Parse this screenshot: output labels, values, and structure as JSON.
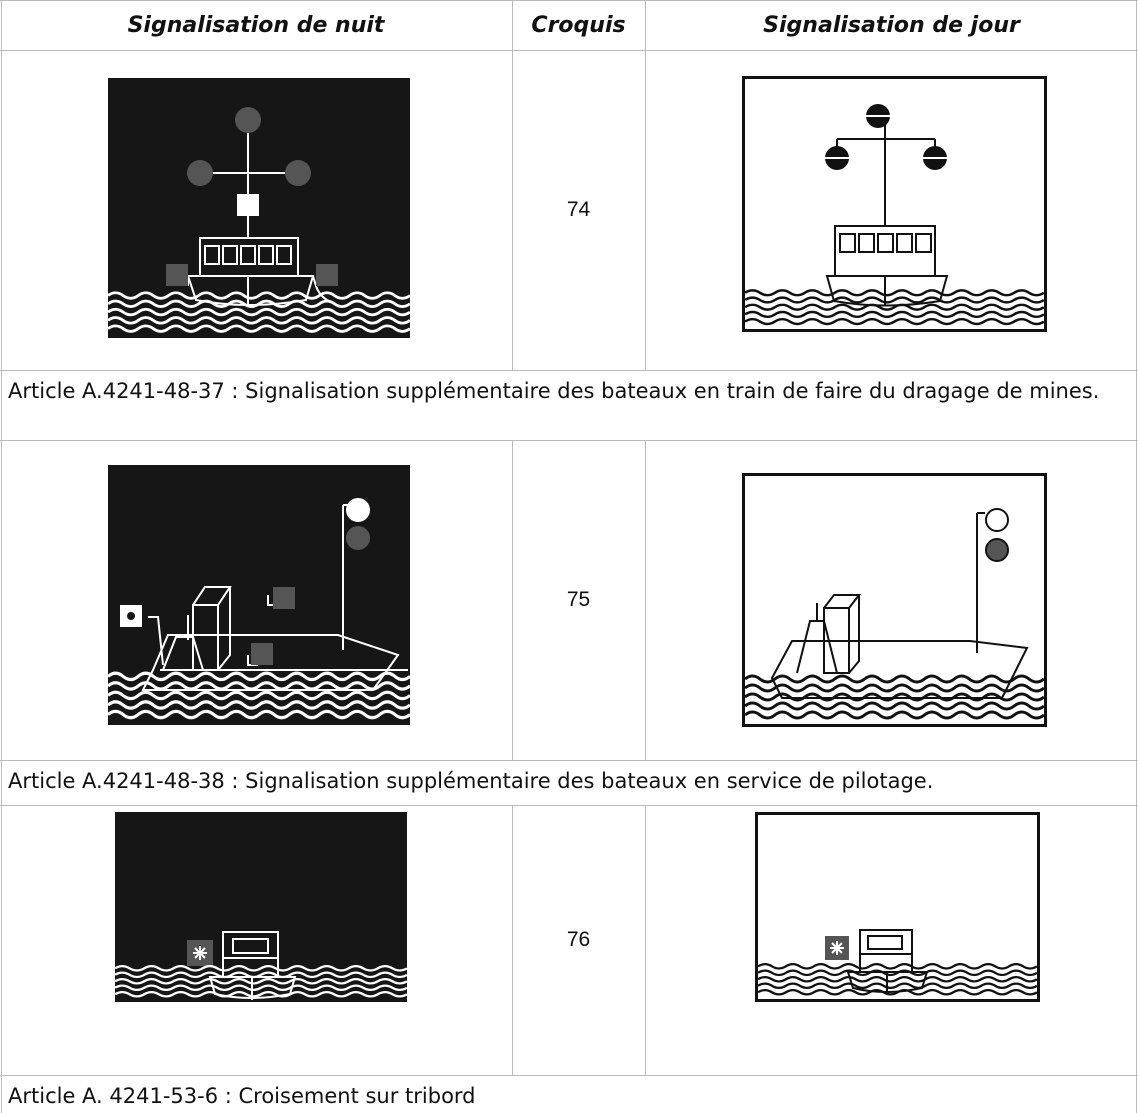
{
  "header": {
    "columns": [
      "Signalisation de nuit",
      "Croquis",
      "Signalisation de jour"
    ]
  },
  "rows": [
    {
      "croquis": "74"
    },
    {
      "croquis": "75"
    },
    {
      "croquis": "76"
    }
  ],
  "articles": [
    "Article A.4241-48-37 : Signalisation supplémentaire des bateaux en train de faire du dragage de mines.",
    "Article A.4241-48-38 : Signalisation supplémentaire des bateaux en service de pilotage.",
    "Article A. 4241-53-6 : Croisement sur tribord"
  ]
}
